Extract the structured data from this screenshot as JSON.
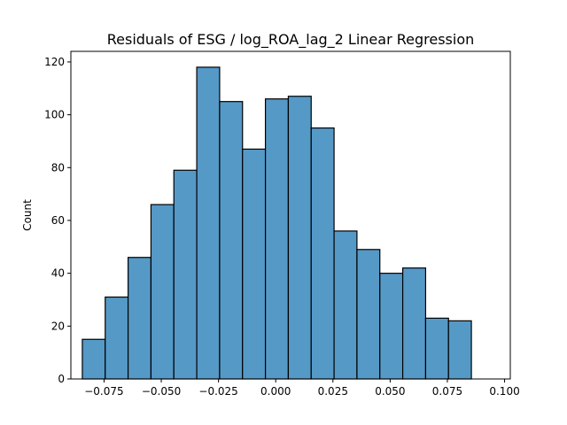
{
  "chart_data": {
    "type": "bar",
    "title": "Residuals of ESG / log_ROA_lag_2 Linear Regression",
    "xlabel": "",
    "ylabel": "Count",
    "xlim": [
      -0.0895,
      0.1025
    ],
    "ylim": [
      0,
      124
    ],
    "grid": false,
    "bar_color": "#5599c7",
    "bins": [
      {
        "x0": -0.0845,
        "x1": -0.0745,
        "count": 15
      },
      {
        "x0": -0.0745,
        "x1": -0.0645,
        "count": 31
      },
      {
        "x0": -0.0645,
        "x1": -0.0545,
        "count": 46
      },
      {
        "x0": -0.0545,
        "x1": -0.0445,
        "count": 66
      },
      {
        "x0": -0.0445,
        "x1": -0.0345,
        "count": 79
      },
      {
        "x0": -0.0345,
        "x1": -0.0245,
        "count": 118
      },
      {
        "x0": -0.0245,
        "x1": -0.0145,
        "count": 105
      },
      {
        "x0": -0.0145,
        "x1": -0.0045,
        "count": 87
      },
      {
        "x0": -0.0045,
        "x1": 0.0055,
        "count": 106
      },
      {
        "x0": 0.0055,
        "x1": 0.0155,
        "count": 107
      },
      {
        "x0": 0.0155,
        "x1": 0.0255,
        "count": 95
      },
      {
        "x0": 0.0255,
        "x1": 0.0355,
        "count": 56
      },
      {
        "x0": 0.0355,
        "x1": 0.0455,
        "count": 49
      },
      {
        "x0": 0.0455,
        "x1": 0.0555,
        "count": 40
      },
      {
        "x0": 0.0555,
        "x1": 0.0655,
        "count": 42
      },
      {
        "x0": 0.0655,
        "x1": 0.0755,
        "count": 23
      },
      {
        "x0": 0.0755,
        "x1": 0.0855,
        "count": 22
      }
    ],
    "x_ticks": [
      -0.075,
      -0.05,
      -0.025,
      0.0,
      0.025,
      0.05,
      0.075,
      0.1
    ],
    "x_tick_labels": [
      "−0.075",
      "−0.050",
      "−0.025",
      "0.000",
      "0.025",
      "0.050",
      "0.075",
      "0.100"
    ],
    "y_ticks": [
      0,
      20,
      40,
      60,
      80,
      100,
      120
    ],
    "y_tick_labels": [
      "0",
      "20",
      "40",
      "60",
      "80",
      "100",
      "120"
    ]
  }
}
